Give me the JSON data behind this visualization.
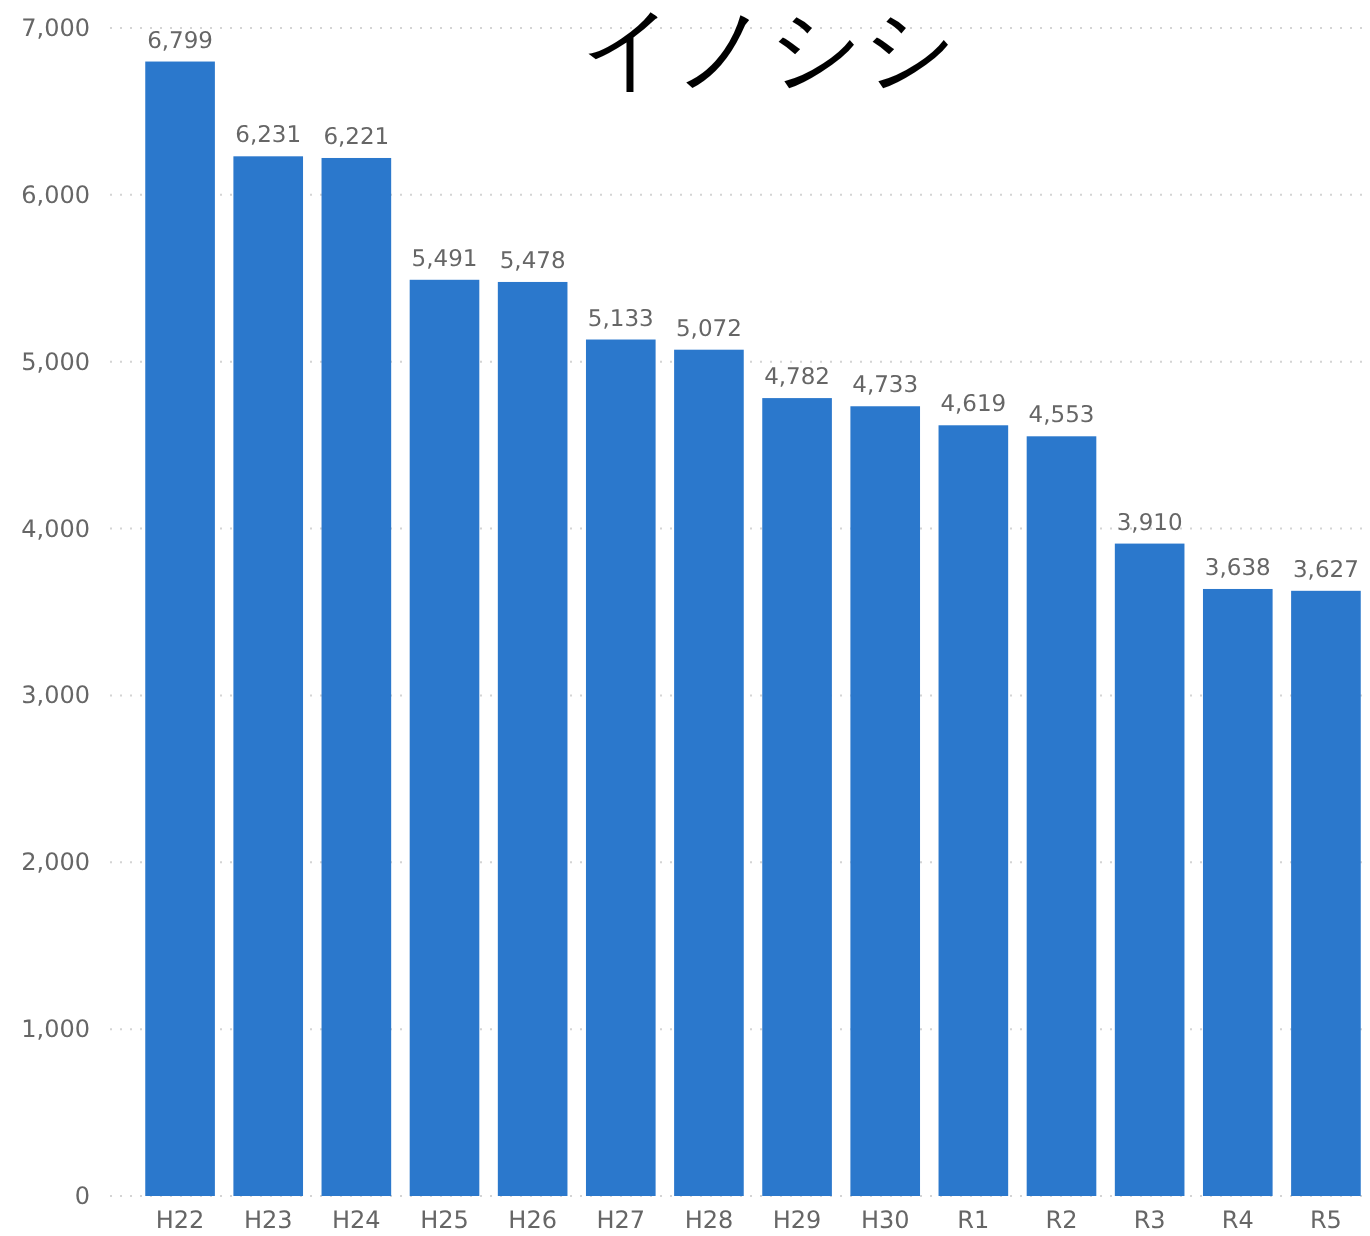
{
  "chart_data": {
    "type": "bar",
    "title": "イノシシ",
    "categories": [
      "H22",
      "H23",
      "H24",
      "H25",
      "H26",
      "H27",
      "H28",
      "H29",
      "H30",
      "R1",
      "R2",
      "R3",
      "R4",
      "R5"
    ],
    "values": [
      6799,
      6231,
      6221,
      5491,
      5478,
      5133,
      5072,
      4782,
      4733,
      4619,
      4553,
      3910,
      3638,
      3627
    ],
    "value_labels": [
      "6,799",
      "6,231",
      "6,221",
      "5,491",
      "5,478",
      "5,133",
      "5,072",
      "4,782",
      "4,733",
      "4,619",
      "4,553",
      "3,910",
      "3,638",
      "3,627"
    ],
    "color": "#2b78cc",
    "ylim": [
      0,
      7000
    ],
    "yticks": [
      {
        "value": 0,
        "label": "0"
      },
      {
        "value": 1000,
        "label": "1,000"
      },
      {
        "value": 2000,
        "label": "2,000"
      },
      {
        "value": 3000,
        "label": "3,000"
      },
      {
        "value": 4000,
        "label": "4,000"
      },
      {
        "value": 5000,
        "label": "5,000"
      },
      {
        "value": 6000,
        "label": "6,000"
      },
      {
        "value": 7000,
        "label": "7,000"
      }
    ],
    "grid": "y"
  }
}
